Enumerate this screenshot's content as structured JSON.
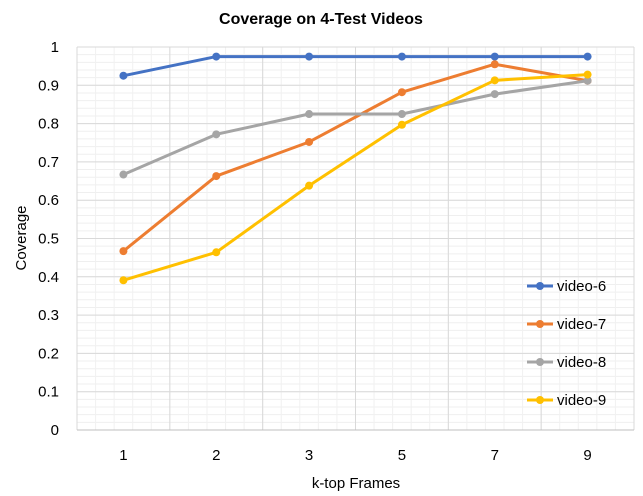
{
  "chart_data": {
    "type": "line",
    "title": "Coverage  on 4-Test Videos",
    "xlabel": "k-top Frames",
    "ylabel": "Coverage",
    "categories": [
      "1",
      "2",
      "3",
      "5",
      "7",
      "9"
    ],
    "ylim": [
      0,
      1
    ],
    "yticks": [
      "0",
      "0.1",
      "0.2",
      "0.3",
      "0.4",
      "0.5",
      "0.6",
      "0.7",
      "0.8",
      "0.9",
      "1"
    ],
    "grid": true,
    "legend_position": "right",
    "series": [
      {
        "name": "video-6",
        "color": "#4472C4",
        "values": [
          0.925,
          0.975,
          0.975,
          0.975,
          0.975,
          0.975
        ]
      },
      {
        "name": "video-7",
        "color": "#ED7D31",
        "values": [
          0.467,
          0.663,
          0.752,
          0.882,
          0.955,
          0.912
        ]
      },
      {
        "name": "video-8",
        "color": "#A5A5A5",
        "values": [
          0.667,
          0.772,
          0.825,
          0.825,
          0.877,
          0.912
        ]
      },
      {
        "name": "video-9",
        "color": "#FFC000",
        "values": [
          0.391,
          0.464,
          0.638,
          0.797,
          0.913,
          0.928
        ]
      }
    ]
  }
}
